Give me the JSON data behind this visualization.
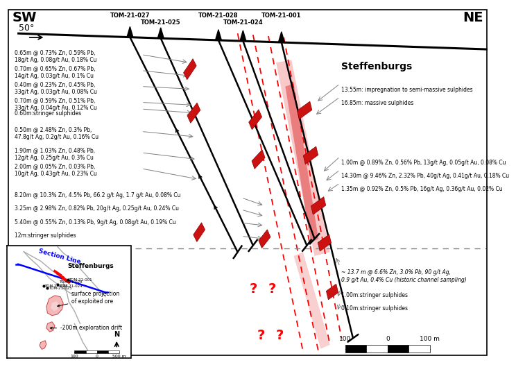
{
  "bg_color": "#ffffff",
  "sw_label": "SW",
  "ne_label": "NE",
  "dip_label": "50°",
  "steffenburgs_label": "Steffenburgs",
  "left_texts": [
    [
      5,
      88,
      "0.65m @ 0.73% Zn, 0.59% Pb,\n18g/t Ag, 0.08g/t Au, 0.18% Cu"
    ],
    [
      5,
      76,
      "0.70m @ 0.65% Zn, 0.67% Pb,\n14g/t Ag, 0.03g/t Au, 0.1% Cu"
    ],
    [
      5,
      64,
      "0.40m @ 0.23% Zn, 0.45% Pb,\n33g/t Ag, 0.03g/t Au, 0.08% Cu"
    ],
    [
      5,
      52,
      "0.70m @ 0.59% Zn, 0.51% Pb,\n33g/t Ag, 0.04g/t Au, 0.12% Cu"
    ],
    [
      5,
      42,
      "0.60m:stringer sulphides"
    ],
    [
      5,
      30,
      "0.50m @ 2.48% Zn, 0.3% Pb,\n47.8g/t Ag, 0.2g/t Au, 0.16% Cu"
    ],
    [
      5,
      14,
      "1.90m @ 1.03% Zn, 0.48% Pb,\n12g/t Ag, 0.25g/t Au, 0.3% Cu"
    ],
    [
      5,
      2,
      "2.00m @ 0.05% Zn, 0.03% Pb,\n10g/t Ag, 0.43g/t Au, 0.23% Cu"
    ],
    [
      5,
      -20,
      "8.20m @ 10.3% Zn, 4.5% Pb, 66.2 g/t Ag, 1.7 g/t Au, 0.08% Cu"
    ],
    [
      5,
      -30,
      "3.25m @ 2.98% Zn, 0.82% Pb, 20g/t Ag, 0.25g/t Au, 0.24% Cu"
    ],
    [
      5,
      -40,
      "5.40m @ 0.55% Zn, 0.13% Pb, 9g/t Ag, 0.08g/t Au, 0.19% Cu"
    ],
    [
      5,
      -50,
      "12m:stringer sulphides"
    ],
    [
      5,
      -75,
      "-200m exploration drift"
    ]
  ],
  "right_texts": [
    [
      430,
      60,
      "13.55m: impregnation to semi-massive sulphides"
    ],
    [
      430,
      50,
      "16.85m: massive sulphides"
    ],
    [
      430,
      5,
      "1.00m @ 0.89% Zn, 0.56% Pb, 13g/t Ag, 0.05g/t Au, 0.08% Cu"
    ],
    [
      430,
      -5,
      "14.30m @ 9.46% Zn, 2.32% Pb, 40g/t Ag, 0.41g/t Au, 0.18% Cu"
    ],
    [
      430,
      -15,
      "1.35m @ 0.92% Zn, 0.5% Pb, 16g/t Ag, 0.36g/t Au, 0.02% Cu"
    ],
    [
      430,
      -78,
      "~ 13.7 m @ 6.6% Zn, 3.0% Pb, 90 g/t Ag,\n0.9 g/t Au, 0.4% Cu (historic channel sampling)"
    ],
    [
      430,
      -95,
      "1.00m:stringer sulphides"
    ],
    [
      430,
      -105,
      "0.10m:stringer sulphides"
    ]
  ],
  "ylim": [
    -145,
    120
  ],
  "xlim": [
    -5,
    620
  ]
}
